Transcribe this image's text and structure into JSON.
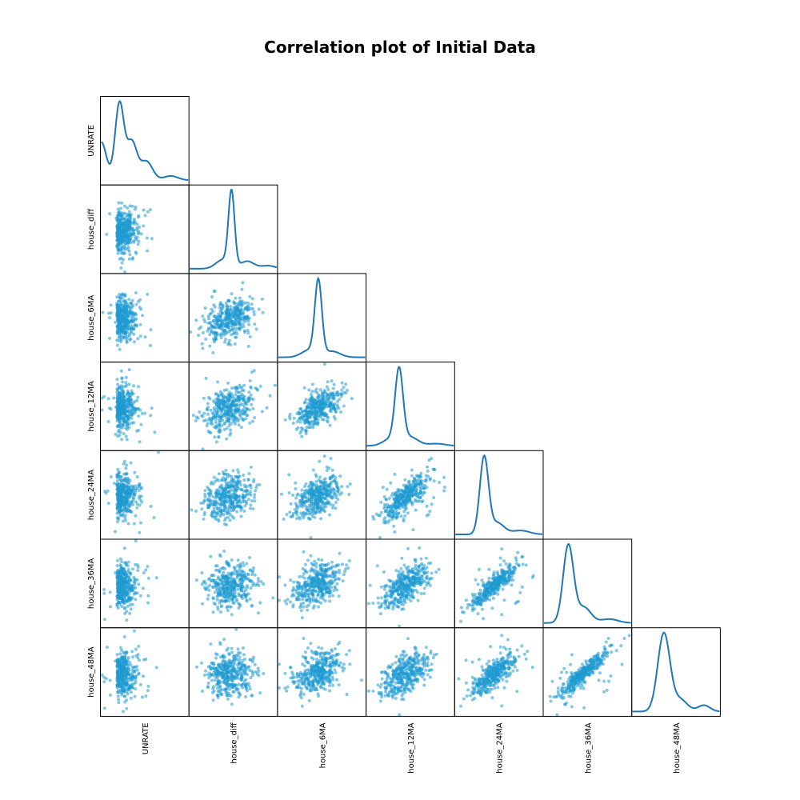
{
  "chart_data": {
    "type": "scatter",
    "title": "Correlation plot of Initial Data",
    "variables": [
      "UNRATE",
      "house_diff",
      "house_6MA",
      "house_12MA",
      "house_24MA",
      "house_36MA",
      "house_48MA"
    ],
    "layout": "lower-triangle",
    "diagonal": "kde",
    "point_color": "#1f9bd1",
    "line_color": "#1f77b4",
    "approx_correlations": {
      "house_diff": {
        "UNRATE": 0.0
      },
      "house_6MA": {
        "UNRATE": -0.05,
        "house_diff": 0.35
      },
      "house_12MA": {
        "UNRATE": -0.08,
        "house_diff": 0.3,
        "house_6MA": 0.65
      },
      "house_24MA": {
        "UNRATE": -0.15,
        "house_diff": 0.2,
        "house_6MA": 0.5,
        "house_12MA": 0.75
      },
      "house_36MA": {
        "UNRATE": -0.3,
        "house_diff": 0.15,
        "house_6MA": 0.4,
        "house_12MA": 0.6,
        "house_24MA": 0.9
      },
      "house_48MA": {
        "UNRATE": -0.35,
        "house_diff": 0.1,
        "house_6MA": 0.35,
        "house_12MA": 0.5,
        "house_24MA": 0.8,
        "house_36MA": 0.92
      }
    },
    "kde_shapes": {
      "UNRATE": "right-skewed, peak near low values with shoulders",
      "house_diff": "sharp single peak, slight right tail",
      "house_6MA": "sharp single peak",
      "house_12MA": "single peak, slight right tail",
      "house_24MA": "single peak, right tail",
      "house_36MA": "single peak, right shoulder",
      "house_48MA": "single peak, right shoulder"
    }
  }
}
